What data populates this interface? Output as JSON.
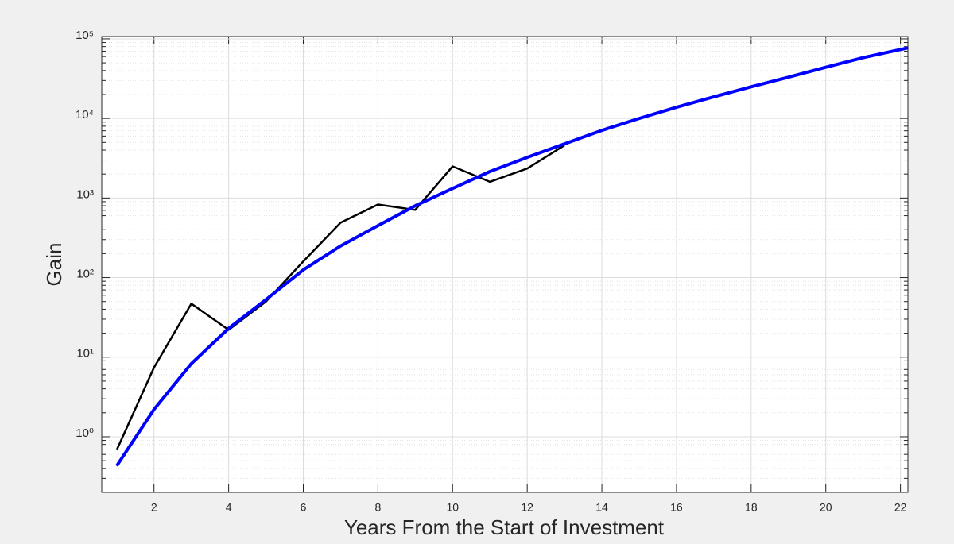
{
  "chart_data": {
    "type": "line",
    "xlabel": "Years From the Start of Investment",
    "ylabel": "Gain",
    "xlim": [
      0.6,
      22.2
    ],
    "ylim": [
      0.2,
      107000
    ],
    "log_y": true,
    "grid": true,
    "minor_grid": true,
    "xticks": [
      2,
      4,
      6,
      8,
      10,
      12,
      14,
      16,
      18,
      20,
      22
    ],
    "yticks": [
      {
        "value": 1,
        "label": "10⁰"
      },
      {
        "value": 10,
        "label": "10¹"
      },
      {
        "value": 100,
        "label": "10²"
      },
      {
        "value": 1000,
        "label": "10³"
      },
      {
        "value": 10000,
        "label": "10⁴"
      },
      {
        "value": 100000,
        "label": "10⁵"
      }
    ],
    "series": [
      {
        "color": "#000000",
        "width": 2.5,
        "x": [
          1,
          2,
          3,
          4,
          5,
          6,
          7,
          8,
          9,
          10,
          11,
          12,
          13
        ],
        "values": [
          0.68,
          7.4,
          47,
          22,
          50,
          160,
          490,
          830,
          710,
          2500,
          1600,
          2350,
          4600
        ]
      },
      {
        "color": "#0000ff",
        "width": 4,
        "x": [
          1,
          2,
          3,
          4,
          5,
          6,
          7,
          8,
          9,
          10,
          11,
          12,
          13,
          14,
          15,
          16,
          17,
          18,
          19,
          20,
          21,
          22.2
        ],
        "values": [
          0.43,
          2.2,
          8.3,
          23,
          53,
          125,
          250,
          450,
          800,
          1320,
          2150,
          3250,
          4800,
          7100,
          10000,
          13800,
          18700,
          25000,
          33000,
          44000,
          58000,
          77000
        ]
      }
    ]
  }
}
